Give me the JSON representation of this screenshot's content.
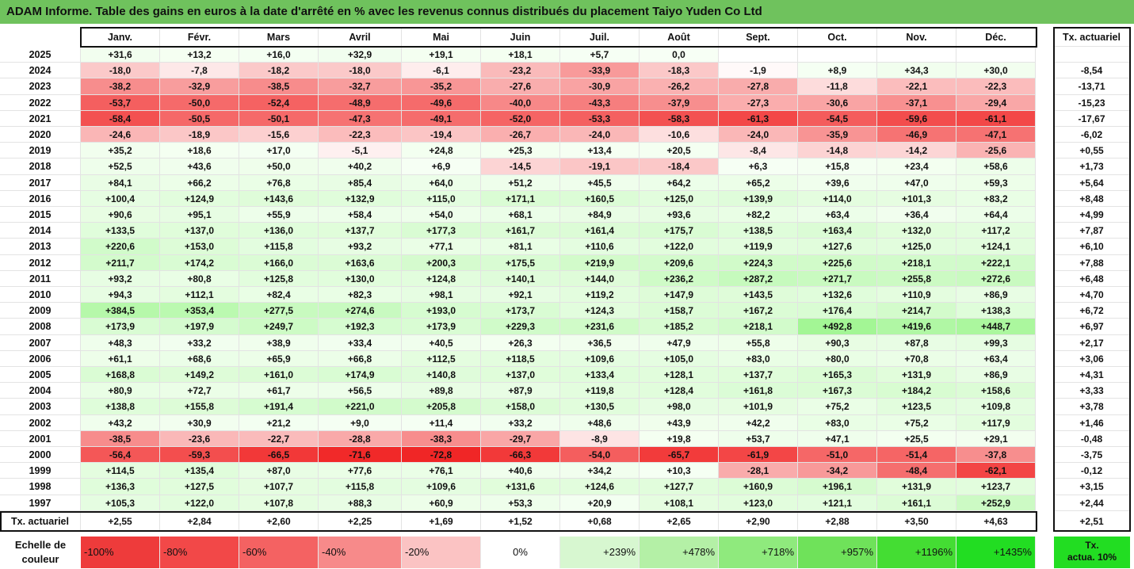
{
  "title": "ADAM Informe. Table des gains en euros à la date d'arrêté en % avec les revenus connus distribués du placement Taiyo Yuden Co Ltd",
  "chart_data": {
    "type": "table",
    "months": [
      "Janv.",
      "Févr.",
      "Mars",
      "Avril",
      "Mai",
      "Juin",
      "Juil.",
      "Août",
      "Sept.",
      "Oct.",
      "Nov.",
      "Déc."
    ],
    "annual_header": "Tx. actuariel",
    "rows": [
      {
        "year": "2025",
        "values": [
          "+31,6",
          "+13,2",
          "+16,0",
          "+32,9",
          "+19,1",
          "+18,1",
          "+5,7",
          "0,0",
          "",
          "",
          "",
          ""
        ],
        "rate": ""
      },
      {
        "year": "2024",
        "values": [
          "-18,0",
          "-7,8",
          "-18,2",
          "-18,0",
          "-6,1",
          "-23,2",
          "-33,9",
          "-18,3",
          "-1,9",
          "+8,9",
          "+34,3",
          "+30,0"
        ],
        "rate": "-8,54"
      },
      {
        "year": "2023",
        "values": [
          "-38,2",
          "-32,9",
          "-38,5",
          "-32,7",
          "-35,2",
          "-27,6",
          "-30,9",
          "-26,2",
          "-27,8",
          "-11,8",
          "-22,1",
          "-22,3"
        ],
        "rate": "-13,71"
      },
      {
        "year": "2022",
        "values": [
          "-53,7",
          "-50,0",
          "-52,4",
          "-48,9",
          "-49,6",
          "-40,0",
          "-43,3",
          "-37,9",
          "-27,3",
          "-30,6",
          "-37,1",
          "-29,4"
        ],
        "rate": "-15,23"
      },
      {
        "year": "2021",
        "values": [
          "-58,4",
          "-50,5",
          "-50,1",
          "-47,3",
          "-49,1",
          "-52,0",
          "-53,3",
          "-58,3",
          "-61,3",
          "-54,5",
          "-59,6",
          "-61,1"
        ],
        "rate": "-17,67"
      },
      {
        "year": "2020",
        "values": [
          "-24,6",
          "-18,9",
          "-15,6",
          "-22,3",
          "-19,4",
          "-26,7",
          "-24,0",
          "-10,6",
          "-24,0",
          "-35,9",
          "-46,9",
          "-47,1"
        ],
        "rate": "-6,02"
      },
      {
        "year": "2019",
        "values": [
          "+35,2",
          "+18,6",
          "+17,0",
          "-5,1",
          "+24,8",
          "+25,3",
          "+13,4",
          "+20,5",
          "-8,4",
          "-14,8",
          "-14,2",
          "-25,6"
        ],
        "rate": "+0,55"
      },
      {
        "year": "2018",
        "values": [
          "+52,5",
          "+43,6",
          "+50,0",
          "+40,2",
          "+6,9",
          "-14,5",
          "-19,1",
          "-18,4",
          "+6,3",
          "+15,8",
          "+23,4",
          "+58,6"
        ],
        "rate": "+1,73"
      },
      {
        "year": "2017",
        "values": [
          "+84,1",
          "+66,2",
          "+76,8",
          "+85,4",
          "+64,0",
          "+51,2",
          "+45,5",
          "+64,2",
          "+65,2",
          "+39,6",
          "+47,0",
          "+59,3"
        ],
        "rate": "+5,64"
      },
      {
        "year": "2016",
        "values": [
          "+100,4",
          "+124,9",
          "+143,6",
          "+132,9",
          "+115,0",
          "+171,1",
          "+160,5",
          "+125,0",
          "+139,9",
          "+114,0",
          "+101,3",
          "+83,2"
        ],
        "rate": "+8,48"
      },
      {
        "year": "2015",
        "values": [
          "+90,6",
          "+95,1",
          "+55,9",
          "+58,4",
          "+54,0",
          "+68,1",
          "+84,9",
          "+93,6",
          "+82,2",
          "+63,4",
          "+36,4",
          "+64,4"
        ],
        "rate": "+4,99"
      },
      {
        "year": "2014",
        "values": [
          "+133,5",
          "+137,0",
          "+136,0",
          "+137,7",
          "+177,3",
          "+161,7",
          "+161,4",
          "+175,7",
          "+138,5",
          "+163,4",
          "+132,0",
          "+117,2"
        ],
        "rate": "+7,87"
      },
      {
        "year": "2013",
        "values": [
          "+220,6",
          "+153,0",
          "+115,8",
          "+93,2",
          "+77,1",
          "+81,1",
          "+110,6",
          "+122,0",
          "+119,9",
          "+127,6",
          "+125,0",
          "+124,1"
        ],
        "rate": "+6,10"
      },
      {
        "year": "2012",
        "values": [
          "+211,7",
          "+174,2",
          "+166,0",
          "+163,6",
          "+200,3",
          "+175,5",
          "+219,9",
          "+209,6",
          "+224,3",
          "+225,6",
          "+218,1",
          "+222,1"
        ],
        "rate": "+7,88"
      },
      {
        "year": "2011",
        "values": [
          "+93,2",
          "+80,8",
          "+125,8",
          "+130,0",
          "+124,8",
          "+140,1",
          "+144,0",
          "+236,2",
          "+287,2",
          "+271,7",
          "+255,8",
          "+272,6"
        ],
        "rate": "+6,48"
      },
      {
        "year": "2010",
        "values": [
          "+94,3",
          "+112,1",
          "+82,4",
          "+82,3",
          "+98,1",
          "+92,1",
          "+119,2",
          "+147,9",
          "+143,5",
          "+132,6",
          "+110,9",
          "+86,9"
        ],
        "rate": "+4,70"
      },
      {
        "year": "2009",
        "values": [
          "+384,5",
          "+353,4",
          "+277,5",
          "+274,6",
          "+193,0",
          "+173,7",
          "+124,3",
          "+158,7",
          "+167,2",
          "+176,4",
          "+214,7",
          "+138,3"
        ],
        "rate": "+6,72"
      },
      {
        "year": "2008",
        "values": [
          "+173,9",
          "+197,9",
          "+249,7",
          "+192,3",
          "+173,9",
          "+229,3",
          "+231,6",
          "+185,2",
          "+218,1",
          "+492,8",
          "+419,6",
          "+448,7"
        ],
        "rate": "+6,97"
      },
      {
        "year": "2007",
        "values": [
          "+48,3",
          "+33,2",
          "+38,9",
          "+33,4",
          "+40,5",
          "+26,3",
          "+36,5",
          "+47,9",
          "+55,8",
          "+90,3",
          "+87,8",
          "+99,3"
        ],
        "rate": "+2,17"
      },
      {
        "year": "2006",
        "values": [
          "+61,1",
          "+68,6",
          "+65,9",
          "+66,8",
          "+112,5",
          "+118,5",
          "+109,6",
          "+105,0",
          "+83,0",
          "+80,0",
          "+70,8",
          "+63,4"
        ],
        "rate": "+3,06"
      },
      {
        "year": "2005",
        "values": [
          "+168,8",
          "+149,2",
          "+161,0",
          "+174,9",
          "+140,8",
          "+137,0",
          "+133,4",
          "+128,1",
          "+137,7",
          "+165,3",
          "+131,9",
          "+86,9"
        ],
        "rate": "+4,31"
      },
      {
        "year": "2004",
        "values": [
          "+80,9",
          "+72,7",
          "+61,7",
          "+56,5",
          "+89,8",
          "+87,9",
          "+119,8",
          "+128,4",
          "+161,8",
          "+167,3",
          "+184,2",
          "+158,6"
        ],
        "rate": "+3,33"
      },
      {
        "year": "2003",
        "values": [
          "+138,8",
          "+155,8",
          "+191,4",
          "+221,0",
          "+205,8",
          "+158,0",
          "+130,5",
          "+98,0",
          "+101,9",
          "+75,2",
          "+123,5",
          "+109,8"
        ],
        "rate": "+3,78"
      },
      {
        "year": "2002",
        "values": [
          "+43,2",
          "+30,9",
          "+21,2",
          "+9,0",
          "+11,4",
          "+33,2",
          "+48,6",
          "+43,9",
          "+42,2",
          "+83,0",
          "+75,2",
          "+117,9"
        ],
        "rate": "+1,46"
      },
      {
        "year": "2001",
        "values": [
          "-38,5",
          "-23,6",
          "-22,7",
          "-28,8",
          "-38,3",
          "-29,7",
          "-8,9",
          "+19,8",
          "+53,7",
          "+47,1",
          "+25,5",
          "+29,1"
        ],
        "rate": "-0,48"
      },
      {
        "year": "2000",
        "values": [
          "-56,4",
          "-59,3",
          "-66,5",
          "-71,6",
          "-72,8",
          "-66,3",
          "-54,0",
          "-65,7",
          "-61,9",
          "-51,0",
          "-51,4",
          "-37,8"
        ],
        "rate": "-3,75"
      },
      {
        "year": "1999",
        "values": [
          "+114,5",
          "+135,4",
          "+87,0",
          "+77,6",
          "+76,1",
          "+40,6",
          "+34,2",
          "+10,3",
          "-28,1",
          "-34,2",
          "-48,4",
          "-62,1"
        ],
        "rate": "-0,12"
      },
      {
        "year": "1998",
        "values": [
          "+136,3",
          "+127,5",
          "+107,7",
          "+115,8",
          "+109,6",
          "+131,6",
          "+124,6",
          "+127,7",
          "+160,9",
          "+196,1",
          "+131,9",
          "+123,7"
        ],
        "rate": "+3,15"
      },
      {
        "year": "1997",
        "values": [
          "+105,3",
          "+122,0",
          "+107,8",
          "+88,3",
          "+60,9",
          "+53,3",
          "+20,9",
          "+108,1",
          "+123,0",
          "+121,1",
          "+161,1",
          "+252,9"
        ],
        "rate": "+2,44"
      }
    ],
    "footer": {
      "label": "Tx. actuariel",
      "values": [
        "+2,55",
        "+2,84",
        "+2,60",
        "+2,25",
        "+1,69",
        "+1,52",
        "+0,68",
        "+2,65",
        "+2,90",
        "+2,88",
        "+3,50",
        "+4,63"
      ],
      "total": "+2,51"
    },
    "color_scale": {
      "label": "Echelle de couleur",
      "steps": [
        {
          "label": "-100%",
          "color": "#ee3b3b"
        },
        {
          "label": "-80%",
          "color": "#f24848"
        },
        {
          "label": "-60%",
          "color": "#f46262"
        },
        {
          "label": "-40%",
          "color": "#f78a8a"
        },
        {
          "label": "-20%",
          "color": "#fbc3c3"
        },
        {
          "label": "0%",
          "color": "#ffffff"
        },
        {
          "label": "+239%",
          "color": "#d7f7d0"
        },
        {
          "label": "+478%",
          "color": "#b4f0a6"
        },
        {
          "label": "+718%",
          "color": "#8fea7d"
        },
        {
          "label": "+957%",
          "color": "#6fe25a"
        },
        {
          "label": "+1196%",
          "color": "#44dd33"
        },
        {
          "label": "+1435%",
          "color": "#22dd22"
        }
      ],
      "legend_right": "Tx. actua. 10%"
    }
  }
}
